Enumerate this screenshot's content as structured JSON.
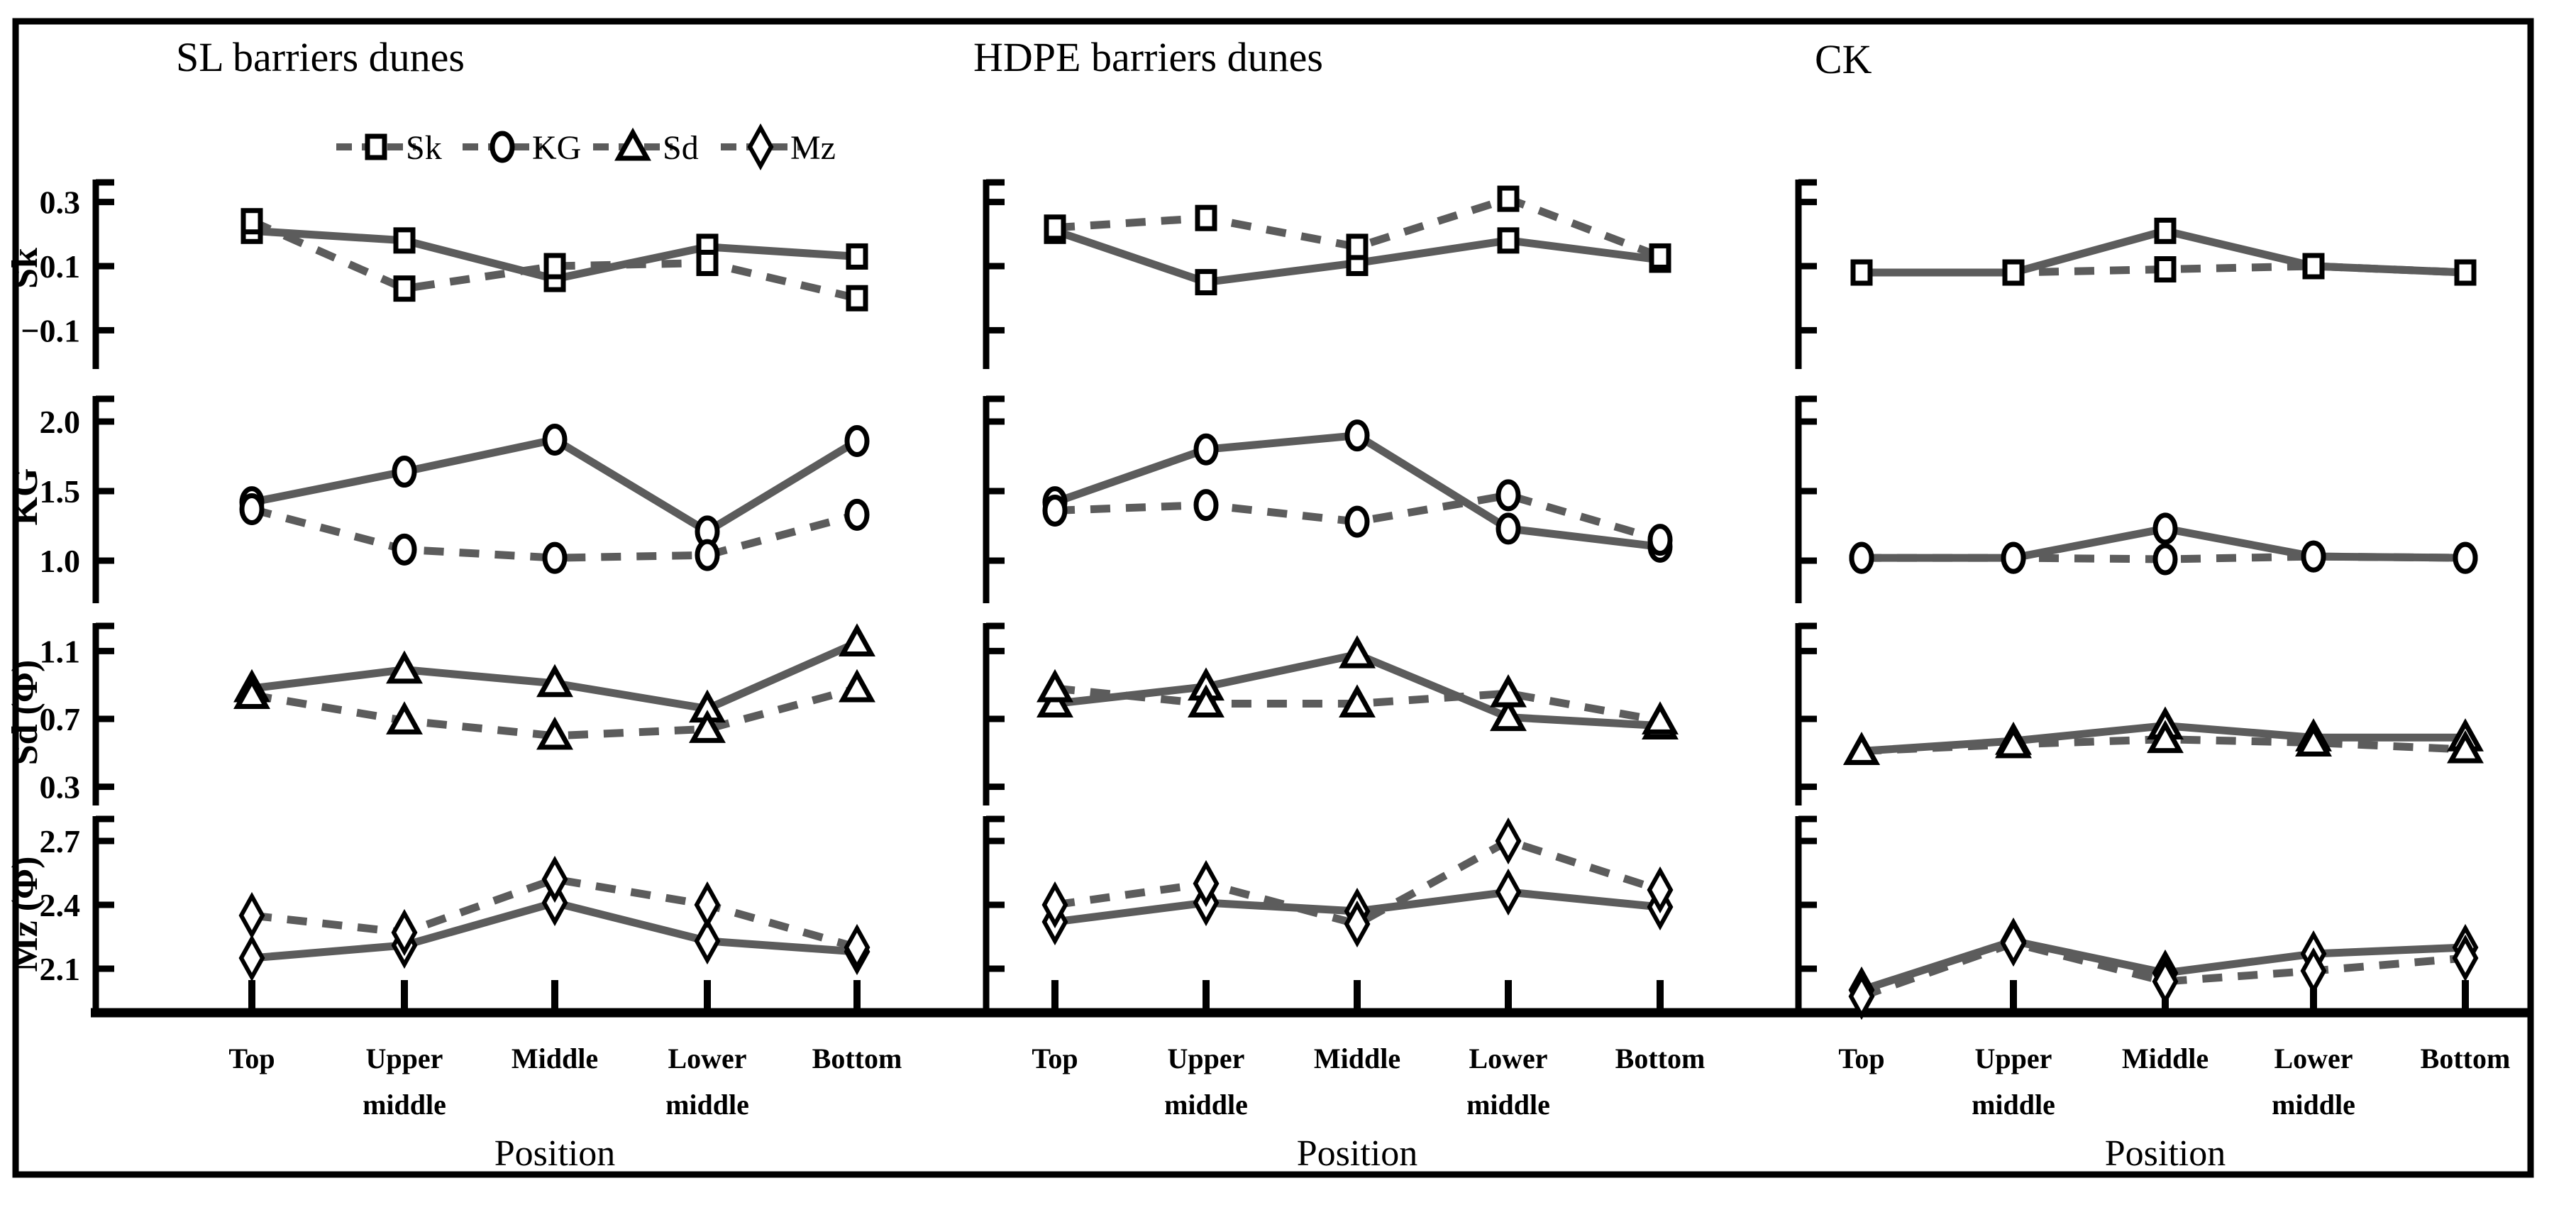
{
  "titles": [
    "SL  barriers dunes",
    "HDPE  barriers dunes",
    "CK"
  ],
  "legend": {
    "items": [
      {
        "label": "Sk",
        "marker": "square"
      },
      {
        "label": "KG",
        "marker": "circle"
      },
      {
        "label": "Sd",
        "marker": "triangle"
      },
      {
        "label": "Mz",
        "marker": "diamond"
      }
    ]
  },
  "x_axis": {
    "label": "Position",
    "categories": [
      "Top",
      "Upper middle",
      "Middle",
      "Lower middle",
      "Bottom"
    ]
  },
  "rows": [
    {
      "id": "Sk",
      "ylabel": "Sk",
      "marker": "square",
      "yticks": [
        0.3,
        0.1,
        -0.1
      ],
      "ytick_labels": [
        "0.3",
        "0.1",
        "−0.1"
      ],
      "ylim": [
        -0.21,
        0.37
      ]
    },
    {
      "id": "KG",
      "ylabel": "KG",
      "marker": "circle",
      "yticks": [
        2.0,
        1.5,
        1.0
      ],
      "ytick_labels": [
        "2.0",
        "1.5",
        "1.0"
      ],
      "ylim": [
        0.69,
        2.17
      ]
    },
    {
      "id": "Sd",
      "ylabel": "Sd (Φ)",
      "marker": "triangle",
      "yticks": [
        1.1,
        0.7,
        0.3
      ],
      "ytick_labels": [
        "1.1",
        "0.7",
        "0.3"
      ],
      "ylim": [
        0.18,
        1.27
      ]
    },
    {
      "id": "Mz",
      "ylabel": "Mz (Φ)",
      "marker": "diamond",
      "yticks": [
        2.7,
        2.4,
        2.1
      ],
      "ytick_labels": [
        "2.7",
        "2.4",
        "2.1"
      ],
      "ylim": [
        1.9,
        2.82
      ]
    }
  ],
  "colors": {
    "line": "#5c5c5c",
    "marker_stroke": "#000000",
    "marker_fill": "#ffffff",
    "frame": "#000000",
    "background": "#ffffff"
  },
  "chart_data": [
    {
      "type": "line",
      "col": 0,
      "row": 0,
      "column": "SL barriers dunes",
      "parameter": "Sk",
      "marker": "square",
      "categories": [
        "Top",
        "Upper middle",
        "Middle",
        "Lower middle",
        "Bottom"
      ],
      "series": [
        {
          "name": "solid",
          "style": "solid",
          "values": [
            0.21,
            0.18,
            0.06,
            0.16,
            0.13
          ]
        },
        {
          "name": "dashed",
          "style": "dashed",
          "values": [
            0.24,
            0.03,
            0.1,
            0.11,
            0.0
          ]
        }
      ]
    },
    {
      "type": "line",
      "col": 0,
      "row": 1,
      "column": "SL barriers dunes",
      "parameter": "KG",
      "marker": "circle",
      "categories": [
        "Top",
        "Upper middle",
        "Middle",
        "Lower middle",
        "Bottom"
      ],
      "series": [
        {
          "name": "solid",
          "style": "solid",
          "values": [
            1.42,
            1.64,
            1.87,
            1.21,
            1.86
          ]
        },
        {
          "name": "dashed",
          "style": "dashed",
          "values": [
            1.37,
            1.08,
            1.02,
            1.04,
            1.33
          ]
        }
      ]
    },
    {
      "type": "line",
      "col": 0,
      "row": 2,
      "column": "SL barriers dunes",
      "parameter": "Sd (Φ)",
      "marker": "triangle",
      "categories": [
        "Top",
        "Upper middle",
        "Middle",
        "Lower middle",
        "Bottom"
      ],
      "series": [
        {
          "name": "solid",
          "style": "solid",
          "values": [
            0.88,
            0.99,
            0.91,
            0.76,
            1.15
          ]
        },
        {
          "name": "dashed",
          "style": "dashed",
          "values": [
            0.84,
            0.69,
            0.6,
            0.64,
            0.88
          ]
        }
      ]
    },
    {
      "type": "line",
      "col": 0,
      "row": 3,
      "column": "SL barriers dunes",
      "parameter": "Mz (Φ)",
      "marker": "diamond",
      "categories": [
        "Top",
        "Upper middle",
        "Middle",
        "Lower middle",
        "Bottom"
      ],
      "series": [
        {
          "name": "solid",
          "style": "solid",
          "values": [
            2.15,
            2.21,
            2.41,
            2.23,
            2.18
          ]
        },
        {
          "name": "dashed",
          "style": "dashed",
          "values": [
            2.35,
            2.27,
            2.52,
            2.4,
            2.2
          ]
        }
      ]
    },
    {
      "type": "line",
      "col": 1,
      "row": 0,
      "column": "HDPE barriers dunes",
      "parameter": "Sk",
      "marker": "square",
      "categories": [
        "Top",
        "Upper middle",
        "Middle",
        "Lower middle",
        "Bottom"
      ],
      "series": [
        {
          "name": "solid",
          "style": "solid",
          "values": [
            0.21,
            0.05,
            0.11,
            0.18,
            0.12
          ]
        },
        {
          "name": "dashed",
          "style": "dashed",
          "values": [
            0.22,
            0.25,
            0.16,
            0.31,
            0.13
          ]
        }
      ]
    },
    {
      "type": "line",
      "col": 1,
      "row": 1,
      "column": "HDPE barriers dunes",
      "parameter": "KG",
      "marker": "circle",
      "categories": [
        "Top",
        "Upper middle",
        "Middle",
        "Lower middle",
        "Bottom"
      ],
      "series": [
        {
          "name": "solid",
          "style": "solid",
          "values": [
            1.42,
            1.8,
            1.9,
            1.23,
            1.1
          ]
        },
        {
          "name": "dashed",
          "style": "dashed",
          "values": [
            1.36,
            1.4,
            1.28,
            1.47,
            1.15
          ]
        }
      ]
    },
    {
      "type": "line",
      "col": 1,
      "row": 2,
      "column": "HDPE barriers dunes",
      "parameter": "Sd (Φ)",
      "marker": "triangle",
      "categories": [
        "Top",
        "Upper middle",
        "Middle",
        "Lower middle",
        "Bottom"
      ],
      "series": [
        {
          "name": "solid",
          "style": "solid",
          "values": [
            0.79,
            0.89,
            1.08,
            0.71,
            0.66
          ]
        },
        {
          "name": "dashed",
          "style": "dashed",
          "values": [
            0.88,
            0.79,
            0.79,
            0.85,
            0.69
          ]
        }
      ]
    },
    {
      "type": "line",
      "col": 1,
      "row": 3,
      "column": "HDPE barriers dunes",
      "parameter": "Mz (Φ)",
      "marker": "diamond",
      "categories": [
        "Top",
        "Upper middle",
        "Middle",
        "Lower middle",
        "Bottom"
      ],
      "series": [
        {
          "name": "solid",
          "style": "solid",
          "values": [
            2.32,
            2.41,
            2.37,
            2.46,
            2.39
          ]
        },
        {
          "name": "dashed",
          "style": "dashed",
          "values": [
            2.4,
            2.5,
            2.31,
            2.7,
            2.47
          ]
        }
      ]
    },
    {
      "type": "line",
      "col": 2,
      "row": 0,
      "column": "CK",
      "parameter": "Sk",
      "marker": "square",
      "categories": [
        "Top",
        "Upper middle",
        "Middle",
        "Lower middle",
        "Bottom"
      ],
      "series": [
        {
          "name": "solid",
          "style": "solid",
          "values": [
            0.08,
            0.08,
            0.21,
            0.1,
            0.08
          ]
        },
        {
          "name": "dashed",
          "style": "dashed",
          "values": [
            0.08,
            0.08,
            0.09,
            0.1,
            0.08
          ]
        }
      ]
    },
    {
      "type": "line",
      "col": 2,
      "row": 1,
      "column": "CK",
      "parameter": "KG",
      "marker": "circle",
      "categories": [
        "Top",
        "Upper middle",
        "Middle",
        "Lower middle",
        "Bottom"
      ],
      "series": [
        {
          "name": "solid",
          "style": "solid",
          "values": [
            1.02,
            1.02,
            1.23,
            1.03,
            1.02
          ]
        },
        {
          "name": "dashed",
          "style": "dashed",
          "values": [
            1.02,
            1.02,
            1.01,
            1.03,
            1.02
          ]
        }
      ]
    },
    {
      "type": "line",
      "col": 2,
      "row": 2,
      "column": "CK",
      "parameter": "Sd (Φ)",
      "marker": "triangle",
      "categories": [
        "Top",
        "Upper middle",
        "Middle",
        "Lower middle",
        "Bottom"
      ],
      "series": [
        {
          "name": "solid",
          "style": "solid",
          "values": [
            0.51,
            0.57,
            0.66,
            0.59,
            0.59
          ]
        },
        {
          "name": "dashed",
          "style": "dashed",
          "values": [
            0.51,
            0.55,
            0.58,
            0.56,
            0.52
          ]
        }
      ]
    },
    {
      "type": "line",
      "col": 2,
      "row": 3,
      "column": "CK",
      "parameter": "Mz (Φ)",
      "marker": "diamond",
      "categories": [
        "Top",
        "Upper middle",
        "Middle",
        "Lower middle",
        "Bottom"
      ],
      "series": [
        {
          "name": "solid",
          "style": "solid",
          "values": [
            2.0,
            2.23,
            2.08,
            2.17,
            2.2
          ]
        },
        {
          "name": "dashed",
          "style": "dashed",
          "values": [
            1.97,
            2.22,
            2.04,
            2.09,
            2.15
          ]
        }
      ]
    }
  ]
}
